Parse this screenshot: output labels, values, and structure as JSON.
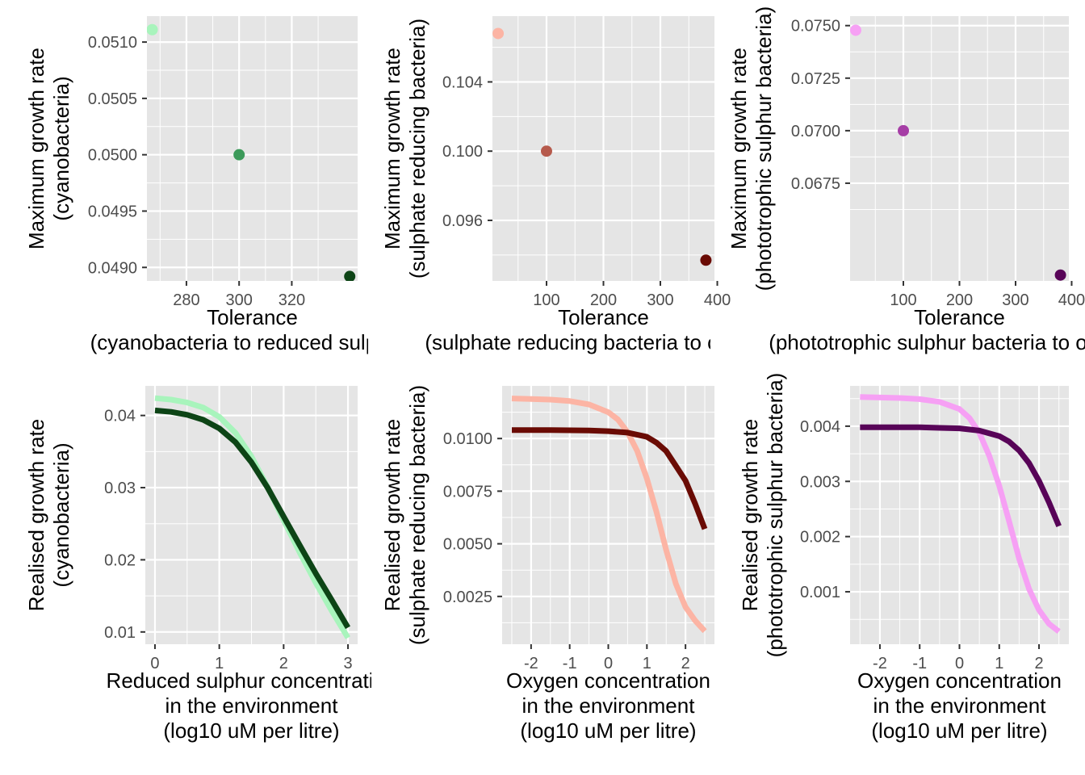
{
  "chart_data": [
    {
      "id": "p1",
      "type": "scatter",
      "xlabel": [
        "Tolerance",
        "(cyanobacteria to reduced sulphur)"
      ],
      "ylabel": [
        "Maximum growth rate",
        "(cyanobacteria)"
      ],
      "xlim": [
        265,
        345
      ],
      "ylim": [
        0.04888,
        0.05123
      ],
      "xticks": [
        {
          "v": 280,
          "label": "280"
        },
        {
          "v": 300,
          "label": "300"
        },
        {
          "v": 320,
          "label": "320"
        }
      ],
      "yticks": [
        {
          "v": 0.049,
          "label": "0.0490"
        },
        {
          "v": 0.0495,
          "label": "0.0495"
        },
        {
          "v": 0.05,
          "label": "0.0500"
        },
        {
          "v": 0.0505,
          "label": "0.0505"
        },
        {
          "v": 0.051,
          "label": "0.0510"
        }
      ],
      "points": [
        {
          "x": 267.0,
          "y": 0.05111,
          "color": "#a8f4bc"
        },
        {
          "x": 300.0,
          "y": 0.05,
          "color": "#3c9a5a"
        },
        {
          "x": 342.0,
          "y": 0.04892,
          "color": "#0d4416"
        }
      ]
    },
    {
      "id": "p2",
      "type": "scatter",
      "xlabel": [
        "Tolerance",
        "(sulphate reducing bacteria to oxygen)"
      ],
      "ylabel": [
        "Maximum growth rate",
        "(sulphate reducing bacteria)"
      ],
      "xlim": [
        5,
        395
      ],
      "ylim": [
        0.0925,
        0.1078
      ],
      "xticks": [
        {
          "v": 100,
          "label": "100"
        },
        {
          "v": 200,
          "label": "200"
        },
        {
          "v": 300,
          "label": "300"
        },
        {
          "v": 400,
          "label": "400"
        }
      ],
      "yticks": [
        {
          "v": 0.096,
          "label": "0.096"
        },
        {
          "v": 0.1,
          "label": "0.100"
        },
        {
          "v": 0.104,
          "label": "0.104"
        }
      ],
      "points": [
        {
          "x": 15.0,
          "y": 0.1068,
          "color": "#fcb4a4"
        },
        {
          "x": 100.0,
          "y": 0.1,
          "color": "#b65a4c"
        },
        {
          "x": 380.0,
          "y": 0.0937,
          "color": "#6a0b04"
        }
      ]
    },
    {
      "id": "p3",
      "type": "scatter",
      "xlabel": [
        "Tolerance",
        "(phototrophic sulphur bacteria to oxygen)"
      ],
      "ylabel": [
        "Maximum growth rate",
        "(phototrophic sulphur bacteria)"
      ],
      "xlim": [
        5,
        395
      ],
      "ylim": [
        0.06285,
        0.07545
      ],
      "xticks": [
        {
          "v": 100,
          "label": "100"
        },
        {
          "v": 200,
          "label": "200"
        },
        {
          "v": 300,
          "label": "300"
        },
        {
          "v": 400,
          "label": "400"
        }
      ],
      "yticks": [
        {
          "v": 0.0675,
          "label": "0.0675"
        },
        {
          "v": 0.07,
          "label": "0.0700"
        },
        {
          "v": 0.0725,
          "label": "0.0725"
        },
        {
          "v": 0.075,
          "label": "0.0750"
        }
      ],
      "points": [
        {
          "x": 15.0,
          "y": 0.07478,
          "color": "#f6a0f4"
        },
        {
          "x": 100.0,
          "y": 0.07,
          "color": "#a63ea6"
        },
        {
          "x": 380.0,
          "y": 0.06313,
          "color": "#580458"
        }
      ]
    },
    {
      "id": "p4",
      "type": "line",
      "xlabel": [
        "Reduced sulphur concentration",
        "in the environment",
        "(log10 uM per litre)"
      ],
      "ylabel": [
        "Realised growth rate",
        "(cyanobacteria)"
      ],
      "xlim": [
        -0.15,
        3.15
      ],
      "ylim": [
        0.0083,
        0.0441
      ],
      "xticks": [
        {
          "v": 0,
          "label": "0"
        },
        {
          "v": 1,
          "label": "1"
        },
        {
          "v": 2,
          "label": "2"
        },
        {
          "v": 3,
          "label": "3"
        }
      ],
      "yticks": [
        {
          "v": 0.01,
          "label": "0.01"
        },
        {
          "v": 0.02,
          "label": "0.02"
        },
        {
          "v": 0.03,
          "label": "0.03"
        },
        {
          "v": 0.04,
          "label": "0.04"
        }
      ],
      "series": [
        {
          "color": "#a8f4bc",
          "x": [
            0,
            0.25,
            0.5,
            0.75,
            1.0,
            1.25,
            1.5,
            1.75,
            2.0,
            2.25,
            2.5,
            2.75,
            3.0
          ],
          "y": [
            0.0424,
            0.0422,
            0.0418,
            0.0411,
            0.0398,
            0.0376,
            0.0343,
            0.0301,
            0.0255,
            0.021,
            0.0168,
            0.0129,
            0.0092
          ]
        },
        {
          "color": "#0d4416",
          "x": [
            0,
            0.25,
            0.5,
            0.75,
            1.0,
            1.25,
            1.5,
            1.75,
            2.0,
            2.25,
            2.5,
            2.75,
            3.0
          ],
          "y": [
            0.0407,
            0.0405,
            0.0401,
            0.0394,
            0.0382,
            0.0363,
            0.0335,
            0.03,
            0.026,
            0.022,
            0.0181,
            0.0144,
            0.0106
          ]
        }
      ]
    },
    {
      "id": "p5",
      "type": "line",
      "xlabel": [
        "Oxygen concentration",
        "in the environment",
        "(log10 uM per litre)"
      ],
      "ylabel": [
        "Realised growth rate",
        "(sulphate reducing bacteria)"
      ],
      "xlim": [
        -2.75,
        2.75
      ],
      "ylim": [
        0.00023,
        0.0125
      ],
      "xticks": [
        {
          "v": -2,
          "label": "-2"
        },
        {
          "v": -1,
          "label": "-1"
        },
        {
          "v": 0,
          "label": "0"
        },
        {
          "v": 1,
          "label": "1"
        },
        {
          "v": 2,
          "label": "2"
        }
      ],
      "yticks": [
        {
          "v": 0.0025,
          "label": "0.0025"
        },
        {
          "v": 0.005,
          "label": "0.0050"
        },
        {
          "v": 0.0075,
          "label": "0.0075"
        },
        {
          "v": 0.01,
          "label": "0.0100"
        }
      ],
      "series": [
        {
          "color": "#fcb4a4",
          "x": [
            -2.5,
            -2.0,
            -1.5,
            -1.0,
            -0.5,
            0.0,
            0.25,
            0.5,
            0.75,
            1.0,
            1.25,
            1.5,
            1.75,
            2.0,
            2.25,
            2.5
          ],
          "y": [
            0.0119,
            0.01188,
            0.01185,
            0.01178,
            0.01162,
            0.01125,
            0.0109,
            0.0103,
            0.0094,
            0.0081,
            0.0065,
            0.0047,
            0.0031,
            0.002,
            0.00135,
            0.00085
          ]
        },
        {
          "color": "#6a0b04",
          "x": [
            -2.5,
            -2.0,
            -1.5,
            -1.0,
            -0.5,
            0.0,
            0.5,
            1.0,
            1.25,
            1.5,
            1.75,
            2.0,
            2.25,
            2.5
          ],
          "y": [
            0.0104,
            0.0104,
            0.0104,
            0.01039,
            0.01038,
            0.01035,
            0.01028,
            0.01008,
            0.0098,
            0.0094,
            0.0087,
            0.008,
            0.0069,
            0.0057
          ]
        }
      ]
    },
    {
      "id": "p6",
      "type": "line",
      "xlabel": [
        "Oxygen concentration",
        "in the environment",
        "(log10 uM per litre)"
      ],
      "ylabel": [
        "Realised growth rate",
        "(phototrophic sulphur bacteria)"
      ],
      "xlim": [
        -2.75,
        2.75
      ],
      "ylim": [
        5e-05,
        0.00473
      ],
      "xticks": [
        {
          "v": -2,
          "label": "-2"
        },
        {
          "v": -1,
          "label": "-1"
        },
        {
          "v": 0,
          "label": "0"
        },
        {
          "v": 1,
          "label": "1"
        },
        {
          "v": 2,
          "label": "2"
        }
      ],
      "yticks": [
        {
          "v": 0.001,
          "label": "0.001"
        },
        {
          "v": 0.002,
          "label": "0.002"
        },
        {
          "v": 0.003,
          "label": "0.003"
        },
        {
          "v": 0.004,
          "label": "0.004"
        }
      ],
      "series": [
        {
          "color": "#f6a0f4",
          "x": [
            -2.5,
            -2.0,
            -1.5,
            -1.0,
            -0.5,
            0.0,
            0.25,
            0.5,
            0.75,
            1.0,
            1.25,
            1.5,
            1.75,
            2.0,
            2.25,
            2.5
          ],
          "y": [
            0.00453,
            0.00452,
            0.00451,
            0.00449,
            0.00444,
            0.00431,
            0.00415,
            0.00388,
            0.00346,
            0.00292,
            0.00227,
            0.0016,
            0.00105,
            0.00067,
            0.00042,
            0.00028
          ]
        },
        {
          "color": "#580458",
          "x": [
            -2.5,
            -2.0,
            -1.5,
            -1.0,
            -0.5,
            0.0,
            0.5,
            1.0,
            1.25,
            1.5,
            1.75,
            2.0,
            2.25,
            2.5
          ],
          "y": [
            0.00398,
            0.00398,
            0.00398,
            0.00398,
            0.00397,
            0.00396,
            0.00392,
            0.00382,
            0.00372,
            0.00356,
            0.00333,
            0.00301,
            0.00262,
            0.00219
          ]
        }
      ]
    }
  ]
}
